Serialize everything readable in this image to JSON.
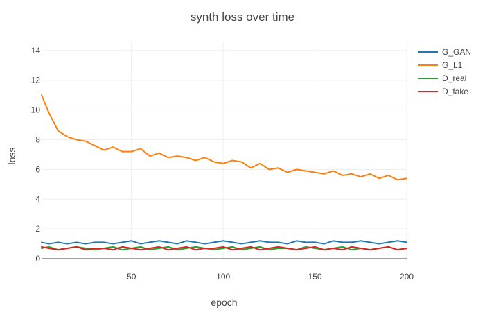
{
  "chart_data": {
    "type": "line",
    "title": "synth loss over time",
    "xlabel": "epoch",
    "ylabel": "loss",
    "xlim": [
      1,
      200
    ],
    "ylim": [
      0,
      14.6
    ],
    "xticks": [
      50,
      100,
      150,
      200
    ],
    "yticks": [
      0,
      2,
      4,
      6,
      8,
      10,
      12,
      14
    ],
    "grid": true,
    "legend_position": "top-right",
    "x": [
      1,
      5,
      10,
      15,
      20,
      25,
      30,
      35,
      40,
      45,
      50,
      55,
      60,
      65,
      70,
      75,
      80,
      85,
      90,
      95,
      100,
      105,
      110,
      115,
      120,
      125,
      130,
      135,
      140,
      145,
      150,
      155,
      160,
      165,
      170,
      175,
      180,
      185,
      190,
      195,
      200
    ],
    "series": [
      {
        "name": "G_GAN",
        "color": "#1f77b4",
        "values": [
          1.1,
          1.0,
          1.1,
          1.0,
          1.1,
          1.0,
          1.1,
          1.1,
          1.0,
          1.1,
          1.2,
          1.0,
          1.1,
          1.2,
          1.1,
          1.0,
          1.2,
          1.1,
          1.0,
          1.1,
          1.2,
          1.1,
          1.0,
          1.1,
          1.2,
          1.1,
          1.1,
          1.0,
          1.2,
          1.1,
          1.1,
          1.0,
          1.2,
          1.1,
          1.1,
          1.2,
          1.1,
          1.0,
          1.1,
          1.2,
          1.1
        ]
      },
      {
        "name": "G_L1",
        "color": "#ff7f0e",
        "values": [
          11.0,
          9.8,
          8.6,
          8.2,
          8.0,
          7.9,
          7.6,
          7.3,
          7.5,
          7.2,
          7.2,
          7.4,
          6.9,
          7.1,
          6.8,
          6.9,
          6.8,
          6.6,
          6.8,
          6.5,
          6.4,
          6.6,
          6.5,
          6.1,
          6.4,
          6.0,
          6.1,
          5.8,
          6.0,
          5.9,
          5.8,
          5.7,
          5.9,
          5.6,
          5.7,
          5.5,
          5.7,
          5.4,
          5.6,
          5.3,
          5.4
        ]
      },
      {
        "name": "D_real",
        "color": "#2ca02c",
        "values": [
          0.7,
          0.8,
          0.6,
          0.7,
          0.8,
          0.7,
          0.6,
          0.7,
          0.8,
          0.6,
          0.7,
          0.8,
          0.6,
          0.7,
          0.8,
          0.6,
          0.7,
          0.8,
          0.7,
          0.6,
          0.7,
          0.8,
          0.6,
          0.7,
          0.8,
          0.6,
          0.7,
          0.7,
          0.6,
          0.8,
          0.7,
          0.6,
          0.7,
          0.8,
          0.6,
          0.7,
          0.6,
          0.7,
          0.8,
          0.6,
          0.7
        ]
      },
      {
        "name": "D_fake",
        "color": "#d62728",
        "values": [
          0.8,
          0.7,
          0.6,
          0.7,
          0.8,
          0.6,
          0.7,
          0.7,
          0.6,
          0.8,
          0.7,
          0.6,
          0.7,
          0.8,
          0.6,
          0.7,
          0.8,
          0.6,
          0.7,
          0.7,
          0.8,
          0.6,
          0.7,
          0.8,
          0.6,
          0.7,
          0.8,
          0.7,
          0.6,
          0.7,
          0.8,
          0.6,
          0.7,
          0.6,
          0.8,
          0.7,
          0.6,
          0.7,
          0.8,
          0.6,
          0.7
        ]
      }
    ]
  }
}
